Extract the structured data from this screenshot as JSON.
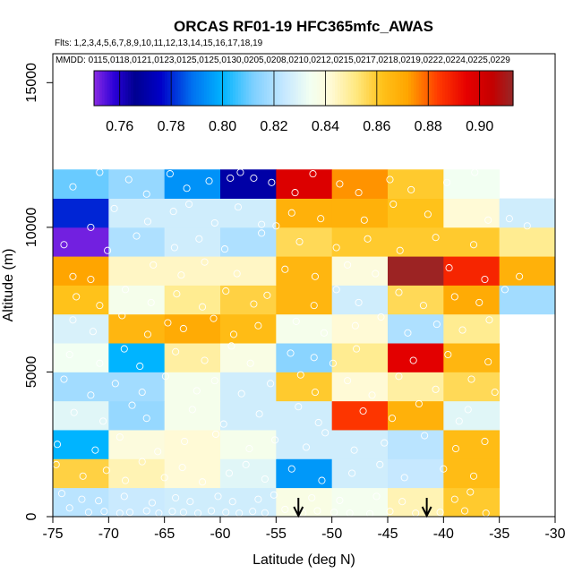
{
  "chart_data": {
    "type": "heatmap",
    "title": "ORCAS RF01-19 HFC365mfc_AWAS",
    "flights_text": "Flts: 1,2,3,4,5,6,7,8,9,10,11,12,13,14,15,16,17,18,19",
    "dates_text": "MMDD: 0115,0118,0121,0123,0125,0125,0130,0205,0208,0210,0212,0215,0217,0218,0219,0222,0224,0225,0229",
    "xlabel": "Latitude (deg N)",
    "ylabel": "Altitude (m)",
    "xlim": [
      -75,
      -30
    ],
    "ylim": [
      0,
      16000
    ],
    "xticks": [
      -75,
      -70,
      -65,
      -60,
      -55,
      -50,
      -45,
      -40,
      -35,
      -30
    ],
    "xtick_labels": [
      "-75",
      "-70",
      "-65",
      "-60",
      "-55",
      "-50",
      "-45",
      "-40",
      "-35",
      "-30"
    ],
    "yticks": [
      0,
      5000,
      10000,
      15000
    ],
    "ytick_labels": [
      "0",
      "5000",
      "10000",
      "15000"
    ],
    "colorbar": {
      "range": [
        0.75,
        0.913
      ],
      "ticks": [
        0.76,
        0.78,
        0.8,
        0.82,
        0.84,
        0.86,
        0.88,
        0.9
      ],
      "tick_labels": [
        "0.76",
        "0.78",
        "0.80",
        "0.82",
        "0.84",
        "0.86",
        "0.88",
        "0.90"
      ],
      "color_stops": [
        {
          "value": 0.75,
          "color": "#8a2be2"
        },
        {
          "value": 0.758,
          "color": "#2a00d8"
        },
        {
          "value": 0.766,
          "color": "#000090"
        },
        {
          "value": 0.776,
          "color": "#0000c8"
        },
        {
          "value": 0.788,
          "color": "#0070f0"
        },
        {
          "value": 0.8,
          "color": "#00b4ff"
        },
        {
          "value": 0.812,
          "color": "#7ed0ff"
        },
        {
          "value": 0.824,
          "color": "#c6e8ff"
        },
        {
          "value": 0.834,
          "color": "#f2fff2"
        },
        {
          "value": 0.842,
          "color": "#fffad6"
        },
        {
          "value": 0.852,
          "color": "#ffe880"
        },
        {
          "value": 0.862,
          "color": "#ffc21a"
        },
        {
          "value": 0.872,
          "color": "#ffa500"
        },
        {
          "value": 0.884,
          "color": "#ff3a00"
        },
        {
          "value": 0.895,
          "color": "#e60000"
        },
        {
          "value": 0.905,
          "color": "#c40000"
        },
        {
          "value": 0.913,
          "color": "#962828"
        }
      ]
    },
    "lat_bins": [
      -75,
      -70,
      -65,
      -60,
      -55,
      -50,
      -45,
      -40,
      -35,
      -30
    ],
    "alt_bins": [
      0,
      1000,
      2000,
      3000,
      4000,
      5000,
      6000,
      7000,
      8000,
      9000,
      10000,
      11000,
      12000
    ],
    "cell_values": [
      [
        0.822,
        0.825,
        0.826,
        0.826,
        0.838,
        0.835,
        0.846,
        0.86,
        null
      ],
      [
        0.858,
        0.846,
        0.842,
        0.83,
        0.795,
        0.826,
        0.824,
        0.864,
        null
      ],
      [
        0.8,
        0.84,
        0.842,
        0.836,
        0.826,
        0.826,
        0.822,
        0.864,
        null
      ],
      [
        0.83,
        0.816,
        0.836,
        0.826,
        0.826,
        0.885,
        0.868,
        0.83,
        null
      ],
      [
        0.818,
        0.818,
        0.836,
        0.826,
        0.86,
        0.842,
        0.848,
        0.856,
        null
      ],
      [
        0.834,
        0.8,
        0.848,
        0.838,
        0.814,
        0.85,
        0.896,
        0.866,
        null
      ],
      [
        0.828,
        0.866,
        0.87,
        0.864,
        0.836,
        0.842,
        0.82,
        0.85,
        null
      ],
      [
        0.862,
        0.836,
        0.85,
        0.858,
        0.866,
        0.826,
        0.856,
        0.87,
        0.818
      ],
      [
        0.872,
        0.844,
        0.844,
        0.844,
        0.866,
        0.84,
        0.912,
        0.888,
        0.868
      ],
      [
        0.752,
        0.82,
        0.826,
        0.82,
        0.856,
        0.86,
        0.86,
        0.86,
        0.85
      ],
      [
        0.78,
        0.826,
        0.826,
        0.826,
        0.868,
        0.868,
        0.862,
        0.842,
        0.826
      ],
      [
        0.81,
        0.816,
        0.794,
        0.77,
        0.898,
        0.874,
        0.86,
        0.834,
        null
      ]
    ],
    "arrows_lat": [
      -53,
      -41.5
    ],
    "sample_points": [
      [
        -73.5,
        300
      ],
      [
        -71.8,
        150
      ],
      [
        -70.4,
        180
      ],
      [
        -69.0,
        120
      ],
      [
        -68.1,
        150
      ],
      [
        -66.6,
        200
      ],
      [
        -65.5,
        120
      ],
      [
        -64.3,
        180
      ],
      [
        -63.3,
        150
      ],
      [
        -62.0,
        120
      ],
      [
        -60.8,
        200
      ],
      [
        -59.5,
        150
      ],
      [
        -58.3,
        120
      ],
      [
        -57.1,
        180
      ],
      [
        -56.0,
        130
      ],
      [
        -54.2,
        250
      ],
      [
        -52.6,
        120
      ],
      [
        -51.3,
        200
      ],
      [
        -49.8,
        150
      ],
      [
        -48.4,
        120
      ],
      [
        -46.6,
        100
      ],
      [
        -44.8,
        180
      ],
      [
        -42.5,
        120
      ],
      [
        -40.3,
        150
      ],
      [
        -38.1,
        200
      ],
      [
        -36.2,
        120
      ],
      [
        -74.2,
        800
      ],
      [
        -72.4,
        600
      ],
      [
        -70.9,
        550
      ],
      [
        -68.6,
        700
      ],
      [
        -66.1,
        480
      ],
      [
        -64.0,
        650
      ],
      [
        -62.7,
        520
      ],
      [
        -60.2,
        700
      ],
      [
        -58.9,
        520
      ],
      [
        -56.6,
        600
      ],
      [
        -55.2,
        750
      ],
      [
        -51.8,
        650
      ],
      [
        -49.3,
        560
      ],
      [
        -46.0,
        700
      ],
      [
        -43.7,
        520
      ],
      [
        -39.0,
        600
      ],
      [
        -37.6,
        850
      ],
      [
        -74.7,
        1800
      ],
      [
        -72.3,
        1400
      ],
      [
        -70.2,
        1600
      ],
      [
        -68.5,
        1250
      ],
      [
        -67.0,
        1900
      ],
      [
        -65.0,
        1350
      ],
      [
        -63.4,
        1700
      ],
      [
        -61.6,
        1200
      ],
      [
        -59.2,
        1500
      ],
      [
        -57.7,
        1800
      ],
      [
        -56.0,
        1300
      ],
      [
        -53.6,
        1650
      ],
      [
        -50.9,
        1250
      ],
      [
        -48.2,
        1500
      ],
      [
        -45.7,
        1800
      ],
      [
        -43.5,
        1350
      ],
      [
        -40.0,
        1650
      ],
      [
        -37.3,
        1400
      ],
      [
        -74.6,
        2500
      ],
      [
        -71.2,
        2300
      ],
      [
        -69.0,
        2750
      ],
      [
        -65.6,
        2250
      ],
      [
        -63.2,
        2600
      ],
      [
        -60.4,
        2850
      ],
      [
        -57.4,
        2350
      ],
      [
        -55.1,
        2650
      ],
      [
        -52.3,
        2400
      ],
      [
        -50.6,
        2900
      ],
      [
        -48.0,
        2300
      ],
      [
        -45.3,
        2550
      ],
      [
        -41.7,
        2800
      ],
      [
        -38.9,
        2350
      ],
      [
        -36.3,
        2600
      ],
      [
        -73.1,
        3600
      ],
      [
        -70.5,
        3300
      ],
      [
        -67.9,
        3850
      ],
      [
        -66.6,
        3400
      ],
      [
        -62.5,
        3700
      ],
      [
        -59.7,
        3200
      ],
      [
        -56.5,
        3550
      ],
      [
        -53.0,
        3800
      ],
      [
        -51.2,
        3250
      ],
      [
        -47.2,
        3650
      ],
      [
        -44.6,
        3400
      ],
      [
        -42.2,
        3900
      ],
      [
        -38.6,
        3300
      ],
      [
        -37.8,
        3700
      ],
      [
        -74.0,
        4750
      ],
      [
        -71.6,
        4200
      ],
      [
        -69.4,
        4600
      ],
      [
        -67.0,
        4300
      ],
      [
        -64.9,
        4850
      ],
      [
        -62.1,
        4350
      ],
      [
        -60.5,
        4700
      ],
      [
        -58.1,
        4250
      ],
      [
        -55.5,
        4600
      ],
      [
        -52.8,
        4900
      ],
      [
        -51.5,
        4300
      ],
      [
        -48.6,
        4700
      ],
      [
        -46.4,
        4200
      ],
      [
        -44.0,
        4850
      ],
      [
        -40.7,
        4400
      ],
      [
        -37.5,
        4750
      ],
      [
        -35.4,
        4300
      ],
      [
        -73.5,
        5600
      ],
      [
        -70.8,
        5300
      ],
      [
        -68.6,
        5800
      ],
      [
        -67.2,
        5200
      ],
      [
        -64.0,
        5700
      ],
      [
        -61.4,
        5400
      ],
      [
        -59.0,
        5900
      ],
      [
        -57.3,
        5300
      ],
      [
        -53.7,
        5650
      ],
      [
        -51.6,
        5500
      ],
      [
        -49.9,
        5300
      ],
      [
        -47.8,
        5800
      ],
      [
        -42.7,
        5400
      ],
      [
        -39.6,
        5600
      ],
      [
        -36.0,
        5350
      ],
      [
        -73.2,
        6800
      ],
      [
        -71.4,
        6400
      ],
      [
        -68.8,
        6950
      ],
      [
        -66.5,
        6300
      ],
      [
        -64.7,
        6700
      ],
      [
        -63.3,
        6500
      ],
      [
        -60.6,
        6850
      ],
      [
        -58.8,
        6300
      ],
      [
        -56.6,
        6600
      ],
      [
        -53.2,
        6750
      ],
      [
        -50.7,
        6350
      ],
      [
        -47.9,
        6600
      ],
      [
        -45.6,
        6900
      ],
      [
        -43.2,
        6350
      ],
      [
        -40.6,
        6650
      ],
      [
        -38.3,
        6450
      ],
      [
        -35.9,
        6800
      ],
      [
        -72.9,
        7600
      ],
      [
        -70.8,
        7300
      ],
      [
        -68.5,
        7850
      ],
      [
        -66.2,
        7400
      ],
      [
        -63.9,
        7700
      ],
      [
        -61.6,
        7250
      ],
      [
        -59.5,
        7800
      ],
      [
        -57.0,
        7350
      ],
      [
        -55.8,
        7650
      ],
      [
        -51.6,
        7300
      ],
      [
        -49.6,
        7850
      ],
      [
        -47.6,
        7400
      ],
      [
        -44.0,
        7750
      ],
      [
        -41.8,
        7300
      ],
      [
        -39.0,
        7600
      ],
      [
        -36.8,
        7400
      ],
      [
        -34.5,
        7850
      ],
      [
        -73.2,
        8300
      ],
      [
        -71.6,
        8200
      ],
      [
        -66.0,
        8700
      ],
      [
        -63.5,
        8350
      ],
      [
        -61.4,
        8800
      ],
      [
        -58.5,
        8400
      ],
      [
        -54.2,
        8550
      ],
      [
        -51.5,
        8300
      ],
      [
        -48.6,
        8700
      ],
      [
        -46.1,
        8400
      ],
      [
        -39.5,
        8600
      ],
      [
        -36.3,
        8200
      ],
      [
        -33.2,
        8300
      ],
      [
        -74.0,
        9400
      ],
      [
        -70.1,
        9200
      ],
      [
        -67.5,
        9700
      ],
      [
        -64.1,
        9300
      ],
      [
        -61.9,
        9600
      ],
      [
        -59.6,
        9250
      ],
      [
        -56.3,
        9800
      ],
      [
        -52.9,
        9500
      ],
      [
        -49.6,
        9300
      ],
      [
        -46.8,
        9600
      ],
      [
        -43.9,
        9200
      ],
      [
        -40.7,
        9650
      ],
      [
        -37.3,
        9400
      ],
      [
        -71.6,
        10000
      ],
      [
        -69.5,
        10650
      ],
      [
        -66.5,
        10200
      ],
      [
        -64.2,
        10550
      ],
      [
        -62.8,
        10800
      ],
      [
        -60.5,
        10150
      ],
      [
        -58.4,
        10700
      ],
      [
        -56.3,
        10100
      ],
      [
        -55.0,
        10050
      ],
      [
        -53.6,
        10500
      ],
      [
        -51.0,
        10300
      ],
      [
        -47.1,
        10250
      ],
      [
        -44.5,
        10800
      ],
      [
        -41.4,
        10450
      ],
      [
        -36.0,
        10250
      ],
      [
        -34.1,
        10300
      ],
      [
        -32.5,
        10050
      ],
      [
        -73.2,
        11400
      ],
      [
        -70.8,
        11900
      ],
      [
        -68.2,
        11650
      ],
      [
        -66.6,
        11150
      ],
      [
        -64.5,
        11850
      ],
      [
        -63.0,
        11350
      ],
      [
        -61.0,
        11600
      ],
      [
        -59.1,
        11700
      ],
      [
        -58.2,
        11900
      ],
      [
        -57.0,
        11700
      ],
      [
        -55.4,
        11550
      ],
      [
        -53.3,
        11200
      ],
      [
        -51.7,
        11850
      ],
      [
        -49.3,
        11500
      ],
      [
        -47.6,
        11200
      ],
      [
        -44.8,
        11650
      ],
      [
        -42.9,
        11300
      ],
      [
        -39.7,
        11550
      ],
      [
        -37.2,
        11900
      ]
    ]
  }
}
